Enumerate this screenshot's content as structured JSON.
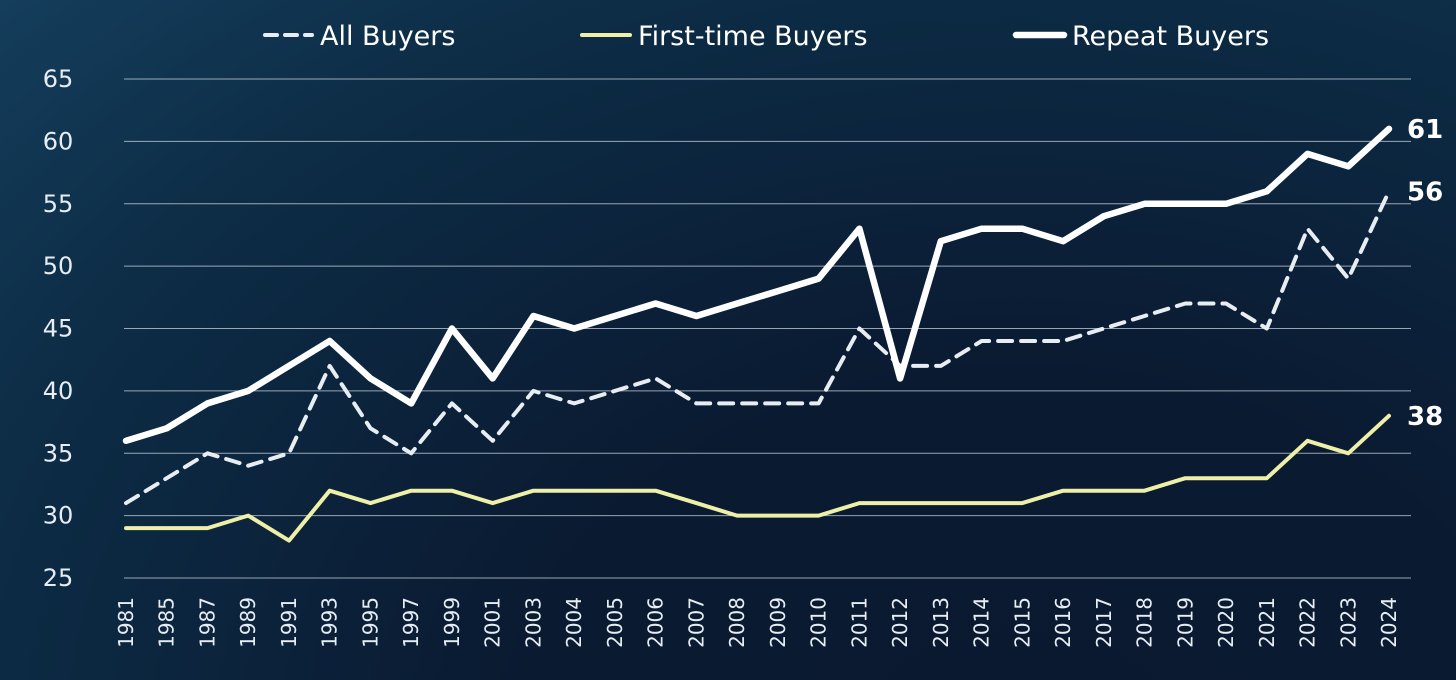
{
  "chart_data": {
    "type": "line",
    "title": "",
    "xlabel": "",
    "ylabel": "",
    "ylim": [
      25,
      65
    ],
    "yticks": [
      25,
      30,
      35,
      40,
      45,
      50,
      55,
      60,
      65
    ],
    "grid": true,
    "legend_position": "top",
    "categories": [
      "1981",
      "1985",
      "1987",
      "1989",
      "1991",
      "1993",
      "1995",
      "1997",
      "1999",
      "2001",
      "2003",
      "2004",
      "2005",
      "2006",
      "2007",
      "2008",
      "2009",
      "2010",
      "2011",
      "2012",
      "2013",
      "2014",
      "2015",
      "2016",
      "2017",
      "2018",
      "2019",
      "2020",
      "2021",
      "2022",
      "2023",
      "2024"
    ],
    "series": [
      {
        "name": "All Buyers",
        "style": "dashed",
        "color": "#e8edf2",
        "values": [
          31,
          33,
          35,
          34,
          35,
          42,
          37,
          35,
          39,
          36,
          40,
          39,
          40,
          41,
          39,
          39,
          39,
          39,
          45,
          42,
          42,
          44,
          44,
          44,
          45,
          46,
          47,
          47,
          45,
          53,
          49,
          56
        ],
        "end_label": "56"
      },
      {
        "name": "First-time Buyers",
        "style": "solid",
        "color": "#eef0a8",
        "values": [
          29,
          29,
          29,
          30,
          28,
          32,
          31,
          32,
          32,
          31,
          32,
          32,
          32,
          32,
          31,
          30,
          30,
          30,
          31,
          31,
          31,
          31,
          31,
          32,
          32,
          32,
          33,
          33,
          33,
          36,
          35,
          38
        ],
        "end_label": "38"
      },
      {
        "name": "Repeat Buyers",
        "style": "solid-thick",
        "color": "#ffffff",
        "values": [
          36,
          37,
          39,
          40,
          42,
          44,
          41,
          39,
          45,
          41,
          46,
          45,
          46,
          47,
          46,
          47,
          48,
          49,
          53,
          41,
          52,
          53,
          53,
          52,
          54,
          55,
          55,
          55,
          56,
          59,
          58,
          61
        ],
        "end_label": "61"
      }
    ]
  }
}
